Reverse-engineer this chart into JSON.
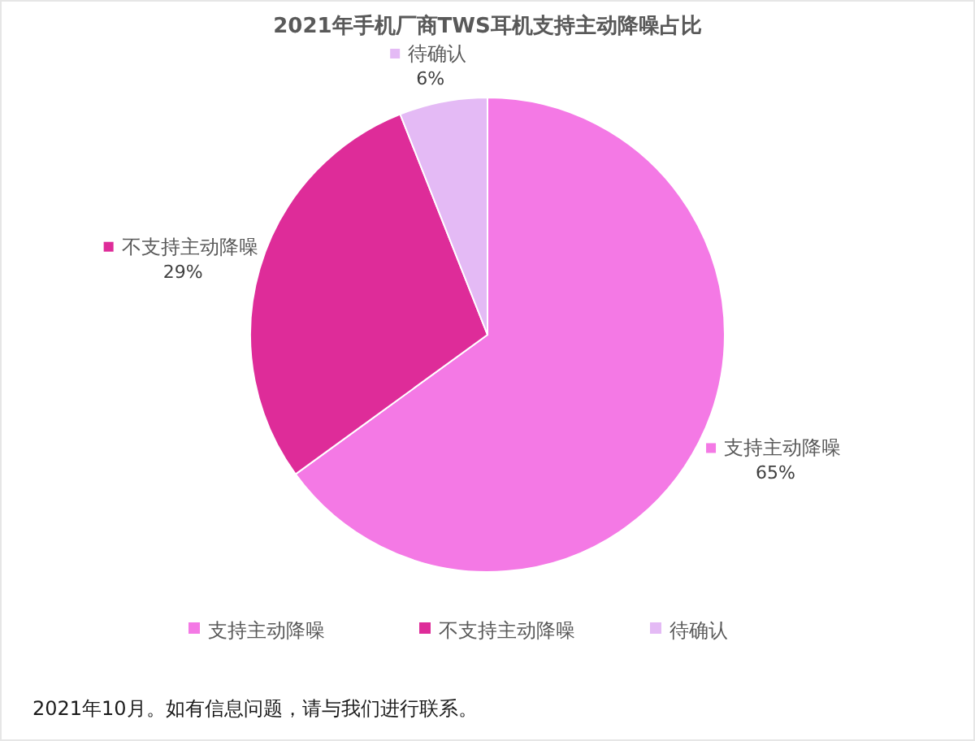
{
  "chart_data": {
    "type": "pie",
    "title": "2021年手机厂商TWS耳机支持主动降噪占比",
    "categories": [
      "支持主动降噪",
      "不支持主动降噪",
      "待确认"
    ],
    "values": [
      65,
      29,
      6
    ],
    "colors": [
      "#f479e5",
      "#de2c99",
      "#e4baf5"
    ],
    "value_labels": [
      "65%",
      "29%",
      "6%"
    ],
    "legend": "bottom",
    "annotations": [
      "2021年10月。如有信息问题，请与我们进行联系。"
    ]
  }
}
